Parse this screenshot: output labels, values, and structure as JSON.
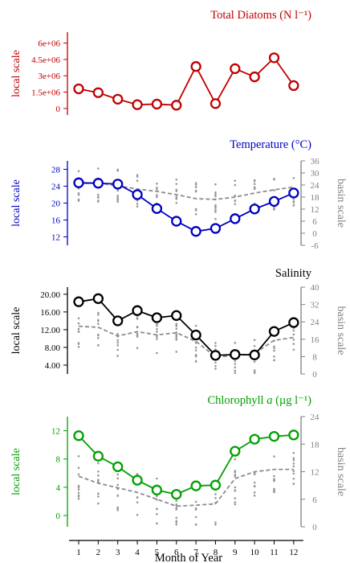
{
  "x_axis": {
    "label": "Month of Year",
    "ticks": [
      "1",
      "2",
      "3",
      "4",
      "5",
      "6",
      "7",
      "8",
      "9",
      "10",
      "11",
      "12"
    ]
  },
  "chart_data": [
    {
      "type": "line",
      "title": "Total Diatoms (N l⁻¹)",
      "color": "#c00000",
      "x": [
        1,
        2,
        3,
        4,
        5,
        6,
        7,
        8,
        9,
        10,
        11,
        12
      ],
      "local_axis": {
        "label": "local scale",
        "ylim": [
          -600000,
          7000000
        ],
        "ticks": [
          0,
          1500000,
          3000000,
          4500000,
          6000000
        ],
        "tick_labels": [
          "0",
          "1.5e+06",
          "3e+06",
          "4.5e+06",
          "6e+06"
        ]
      },
      "series": [
        {
          "role": "local",
          "values": [
            1800000,
            1450000,
            850000,
            350000,
            400000,
            300000,
            3850000,
            450000,
            3650000,
            2900000,
            4650000,
            2100000
          ]
        }
      ]
    },
    {
      "type": "line",
      "title": "Temperature (°C)",
      "color": "#0000c0",
      "x": [
        1,
        2,
        3,
        4,
        5,
        6,
        7,
        8,
        9,
        10,
        11,
        12
      ],
      "local_axis": {
        "label": "local scale",
        "ylim": [
          10,
          30
        ],
        "ticks": [
          12,
          16,
          20,
          24,
          28
        ],
        "tick_labels": [
          "12",
          "16",
          "20",
          "24",
          "28"
        ]
      },
      "basin_axis": {
        "label": "basin scale",
        "ylim": [
          -6,
          36
        ],
        "ticks": [
          -6,
          0,
          6,
          12,
          18,
          24,
          30,
          36
        ],
        "tick_labels": [
          "-6",
          "0",
          "6",
          "12",
          "18",
          "24",
          "30",
          "36"
        ]
      },
      "series": [
        {
          "role": "local",
          "values": [
            24.8,
            24.7,
            24.5,
            22.0,
            18.7,
            15.7,
            13.3,
            14.0,
            16.3,
            18.6,
            20.4,
            22.4
          ]
        },
        {
          "role": "basin-mean",
          "values": [
            24.8,
            25.0,
            23.6,
            22.0,
            20.8,
            19.2,
            17.2,
            16.8,
            18.0,
            20.0,
            21.6,
            23.0
          ]
        }
      ]
    },
    {
      "type": "line",
      "title": "Salinity",
      "color": "#000000",
      "x": [
        1,
        2,
        3,
        4,
        5,
        6,
        7,
        8,
        9,
        10,
        11,
        12
      ],
      "local_axis": {
        "label": "local scale",
        "ylim": [
          2,
          21.6
        ],
        "ticks": [
          4,
          8,
          12,
          16,
          20
        ],
        "tick_labels": [
          "4.00",
          "8.00",
          "12.00",
          "16.00",
          "20.00"
        ]
      },
      "basin_axis": {
        "label": "basin scale",
        "ylim": [
          0,
          40
        ],
        "ticks": [
          0,
          8,
          16,
          24,
          32,
          40
        ],
        "tick_labels": [
          "0",
          "8",
          "16",
          "24",
          "32",
          "40"
        ]
      },
      "series": [
        {
          "role": "local",
          "values": [
            18.3,
            19.0,
            14.0,
            16.3,
            14.7,
            15.2,
            10.8,
            6.2,
            6.4,
            6.3,
            11.6,
            13.6
          ]
        },
        {
          "role": "basin-mean",
          "values": [
            22.0,
            21.5,
            17.5,
            19.5,
            18.0,
            19.0,
            15.0,
            8.0,
            8.3,
            9.5,
            15.5,
            16.8
          ]
        }
      ]
    },
    {
      "type": "line",
      "title": "Chlorophyll a (µg l⁻¹)",
      "title_parts": {
        "before": "Chlorophyll ",
        "italic": "a",
        "after": " (µg l⁻¹)"
      },
      "color": "#00a000",
      "x": [
        1,
        2,
        3,
        4,
        5,
        6,
        7,
        8,
        9,
        10,
        11,
        12
      ],
      "local_axis": {
        "label": "local scale",
        "ylim": [
          -1.6,
          14
        ],
        "ticks": [
          0,
          4,
          8,
          12
        ],
        "tick_labels": [
          "0",
          "4",
          "8",
          "12"
        ]
      },
      "basin_axis": {
        "label": "basin scale",
        "ylim": [
          0,
          24
        ],
        "ticks": [
          0,
          6,
          12,
          18,
          24
        ],
        "tick_labels": [
          "0",
          "6",
          "12",
          "18",
          "24"
        ]
      },
      "series": [
        {
          "role": "local",
          "values": [
            11.3,
            8.4,
            6.9,
            5.0,
            3.6,
            3.0,
            4.2,
            4.3,
            9.1,
            10.8,
            11.2,
            11.4
          ]
        },
        {
          "role": "basin-mean",
          "values": [
            11.0,
            9.5,
            8.5,
            7.5,
            6.0,
            4.5,
            4.7,
            5.0,
            10.5,
            12.0,
            12.5,
            12.5
          ]
        }
      ]
    }
  ]
}
